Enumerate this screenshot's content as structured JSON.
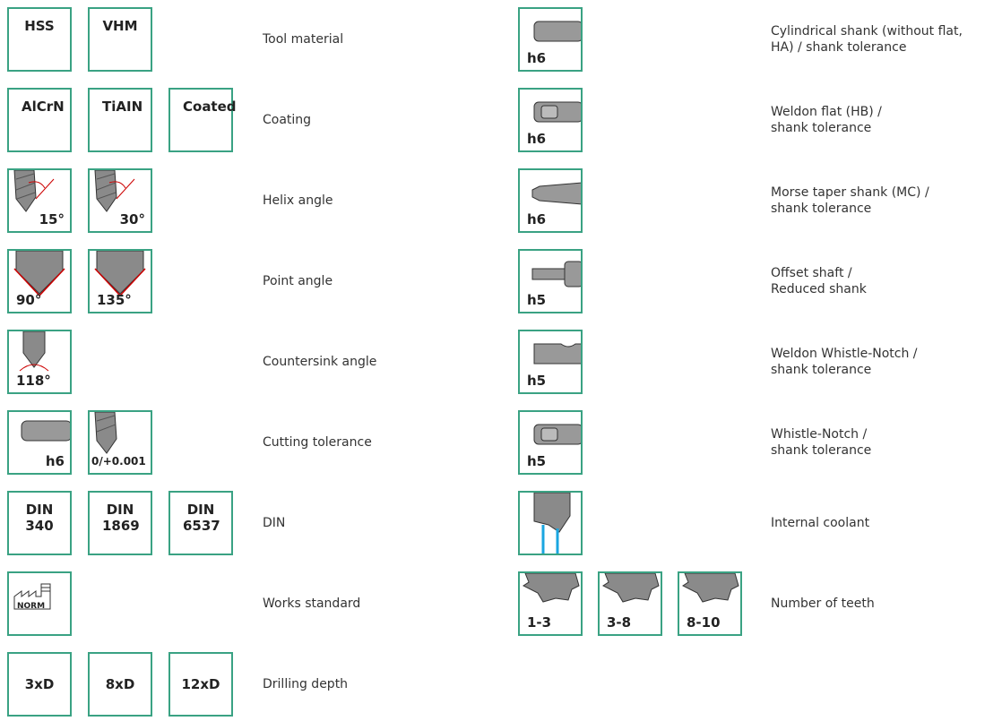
{
  "left": [
    {
      "badges": [
        "HSS",
        "VHM"
      ],
      "label": "Tool material"
    },
    {
      "badges": [
        "AlCrN",
        "TiAIN",
        "Coated"
      ],
      "label": "Coating"
    },
    {
      "badges": [
        "15°",
        "30°"
      ],
      "label": "Helix angle"
    },
    {
      "badges": [
        "90°",
        "135°"
      ],
      "label": "Point angle"
    },
    {
      "badges": [
        "118°"
      ],
      "label": "Countersink angle"
    },
    {
      "badges": [
        "h6",
        "0/+0.001"
      ],
      "label": "Cutting tolerance"
    },
    {
      "badges": [
        "DIN 340",
        "DIN 1869",
        "DIN 6537"
      ],
      "label": "DIN"
    },
    {
      "badges": [
        "NORM"
      ],
      "label": "Works standard"
    },
    {
      "badges": [
        "3xD",
        "8xD",
        "12xD"
      ],
      "label": "Drilling depth"
    }
  ],
  "right": [
    {
      "badges": [
        "h6"
      ],
      "label": "Cylindrical shank (without flat,\nHA) / shank tolerance"
    },
    {
      "badges": [
        "h6"
      ],
      "label": "Weldon flat (HB) /\nshank tolerance"
    },
    {
      "badges": [
        "h6"
      ],
      "label": "Morse taper shank (MC) /\nshank tolerance"
    },
    {
      "badges": [
        "h5"
      ],
      "label": "Offset shaft /\nReduced shank"
    },
    {
      "badges": [
        "h5"
      ],
      "label": "Weldon Whistle-Notch /\nshank tolerance"
    },
    {
      "badges": [
        "h5"
      ],
      "label": "Whistle-Notch /\nshank tolerance"
    },
    {
      "label": "Internal coolant"
    },
    {
      "badges": [
        "1-3",
        "3-8",
        "8-10"
      ],
      "label": "Number of teeth"
    }
  ]
}
